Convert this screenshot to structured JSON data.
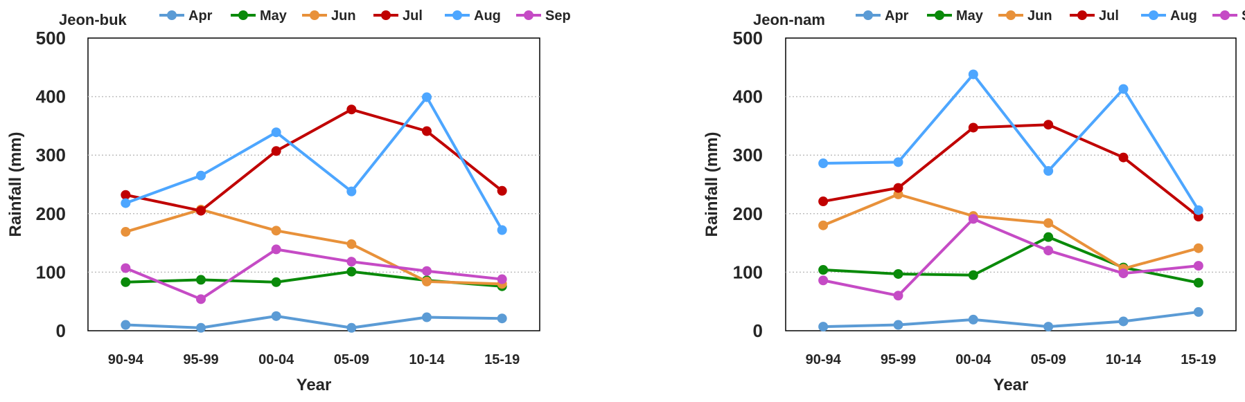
{
  "chart_data": [
    {
      "type": "line",
      "title": "Jeon-buk",
      "xlabel": "Year",
      "ylabel": "Rainfall (mm)",
      "categories": [
        "90-94",
        "95-99",
        "00-04",
        "05-09",
        "10-14",
        "15-19"
      ],
      "ylim": [
        0,
        500
      ],
      "yticks": [
        0,
        100,
        200,
        300,
        400,
        500
      ],
      "grid": true,
      "legend": "top",
      "series": [
        {
          "name": "Apr",
          "color": "#5b9bd5",
          "values": [
            10,
            5,
            25,
            5,
            23,
            21
          ]
        },
        {
          "name": "May",
          "color": "#0a8a0a",
          "values": [
            83,
            87,
            83,
            101,
            86,
            76
          ]
        },
        {
          "name": "Jun",
          "color": "#e8913a",
          "values": [
            169,
            207,
            171,
            148,
            84,
            80
          ]
        },
        {
          "name": "Jul",
          "color": "#c00000",
          "values": [
            232,
            205,
            307,
            378,
            341,
            239
          ]
        },
        {
          "name": "Aug",
          "color": "#4da6ff",
          "values": [
            218,
            265,
            339,
            238,
            399,
            172
          ]
        },
        {
          "name": "Sep",
          "color": "#c54bc5",
          "values": [
            107,
            54,
            139,
            118,
            102,
            88
          ]
        }
      ]
    },
    {
      "type": "line",
      "title": "Jeon-nam",
      "xlabel": "Year",
      "ylabel": "Rainfall (mm)",
      "categories": [
        "90-94",
        "95-99",
        "00-04",
        "05-09",
        "10-14",
        "15-19"
      ],
      "ylim": [
        0,
        500
      ],
      "yticks": [
        0,
        100,
        200,
        300,
        400,
        500
      ],
      "grid": true,
      "legend": "top",
      "series": [
        {
          "name": "Apr",
          "color": "#5b9bd5",
          "values": [
            7,
            10,
            19,
            7,
            16,
            32
          ]
        },
        {
          "name": "May",
          "color": "#0a8a0a",
          "values": [
            104,
            97,
            95,
            160,
            108,
            82
          ]
        },
        {
          "name": "Jun",
          "color": "#e8913a",
          "values": [
            180,
            233,
            196,
            184,
            106,
            141
          ]
        },
        {
          "name": "Jul",
          "color": "#c00000",
          "values": [
            221,
            244,
            347,
            352,
            296,
            195
          ]
        },
        {
          "name": "Aug",
          "color": "#4da6ff",
          "values": [
            286,
            288,
            438,
            273,
            413,
            206
          ]
        },
        {
          "name": "Sep",
          "color": "#c54bc5",
          "values": [
            86,
            60,
            191,
            137,
            98,
            111
          ]
        }
      ]
    }
  ]
}
